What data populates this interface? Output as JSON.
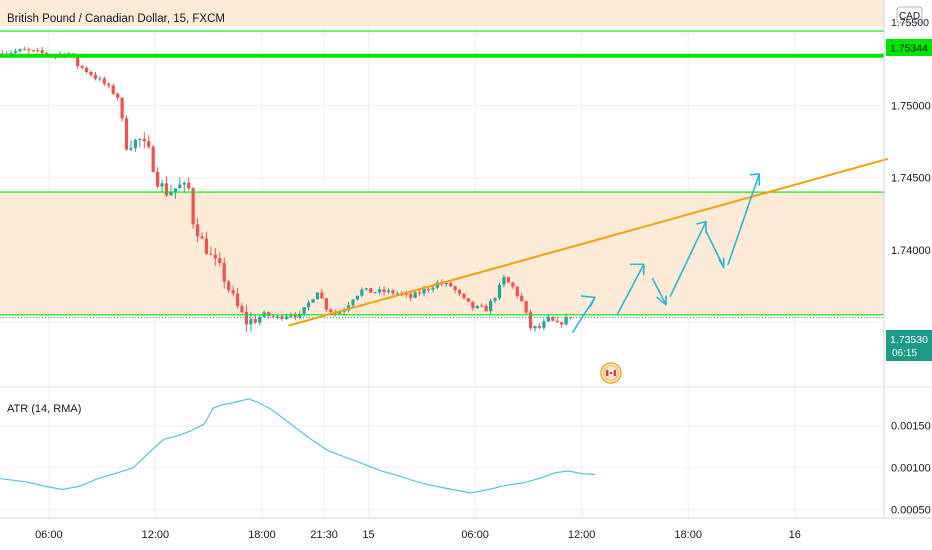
{
  "header": {
    "title": "British Pound / Canadian Dollar, 15, FXCM",
    "currency_badge": "CAD"
  },
  "colors": {
    "up_candle": "#26a69a",
    "down_candle": "#ef5350",
    "zone_fill": "#fdebd7",
    "level_line": "#00e600",
    "trend_line": "#f5a00a",
    "projection": "#27b7d8",
    "atr_line": "#55c3e3",
    "price_tag": "#1c9c86",
    "grid": "#eef0f3"
  },
  "price_panel": {
    "price_ticks": [
      "1.75000",
      "1.74500",
      "1.74000"
    ],
    "top_tick_partial": "1.75500",
    "level_tag": "1.75344",
    "last_price": "1.73530",
    "countdown": "06:15",
    "time_labels": [
      "06:00",
      "12:00",
      "18:00",
      "21:30",
      "15",
      "06:00",
      "12:00",
      "18:00",
      "16"
    ],
    "event_icon": "canada-event-icon"
  },
  "atr_panel": {
    "label": "ATR (14, RMA)",
    "ticks": [
      "0.00150",
      "0.00100",
      "0.00050"
    ]
  },
  "chart_data": {
    "type": "candlestick",
    "title": "British Pound / Canadian Dollar, 15, FXCM",
    "ylim": [
      1.7305,
      1.7573
    ],
    "x_range_bars": [
      0,
      200
    ],
    "grid": true,
    "zones": [
      {
        "from": 1.7555,
        "to": 1.7573
      },
      {
        "from": 1.7355,
        "to": 1.744
      }
    ],
    "levels": [
      1.75515,
      1.75344,
      1.744,
      1.7355
    ],
    "trendline": {
      "from": [
        65,
        1.73475
      ],
      "to": [
        200,
        1.7463
      ]
    },
    "projection_path": [
      [
        129,
        1.7343
      ],
      [
        134,
        1.7367
      ],
      [
        139,
        1.7355
      ],
      [
        146,
        1.739
      ],
      [
        151,
        1.7364
      ],
      [
        146,
        1.739
      ],
      [
        148,
        1.737
      ],
      [
        150,
        1.737
      ],
      [
        153,
        1.7372
      ],
      [
        160,
        1.74195
      ],
      [
        164,
        1.739
      ],
      [
        171,
        1.74525
      ]
    ],
    "projection_segments": [
      [
        [
          129,
          1.7343
        ],
        [
          134,
          1.7367
        ]
      ],
      [
        [
          131,
          1.7368
        ],
        [
          134,
          1.7367
        ],
        [
          133,
          1.7361
        ]
      ],
      [
        [
          139,
          1.7355
        ],
        [
          145,
          1.739
        ]
      ],
      [
        [
          142,
          1.739
        ],
        [
          145,
          1.739
        ],
        [
          145,
          1.7383
        ]
      ],
      [
        [
          147,
          1.738
        ],
        [
          150,
          1.7362
        ]
      ],
      [
        [
          148,
          1.7367
        ],
        [
          150,
          1.7362
        ],
        [
          150,
          1.7368
        ]
      ],
      [
        [
          151,
          1.7368
        ],
        [
          159,
          1.74195
        ]
      ],
      [
        [
          157,
          1.7418
        ],
        [
          159,
          1.74195
        ],
        [
          159,
          1.7412
        ]
      ],
      [
        [
          159,
          1.7413
        ],
        [
          163,
          1.7388
        ]
      ],
      [
        [
          162,
          1.7393
        ],
        [
          163,
          1.7388
        ],
        [
          163,
          1.7394
        ]
      ],
      [
        [
          164,
          1.739
        ],
        [
          171,
          1.74525
        ]
      ],
      [
        [
          169,
          1.7452
        ],
        [
          171,
          1.74525
        ],
        [
          171,
          1.7445
        ]
      ]
    ],
    "close_path": [
      [
        0,
        1.7536
      ],
      [
        6,
        1.7538
      ],
      [
        12,
        1.7535
      ],
      [
        16,
        1.7536
      ],
      [
        18,
        1.7528
      ],
      [
        20,
        1.7524
      ],
      [
        24,
        1.7515
      ],
      [
        27,
        1.7506
      ],
      [
        29,
        1.7473
      ],
      [
        32,
        1.7476
      ],
      [
        34,
        1.7468
      ],
      [
        36,
        1.7448
      ],
      [
        38,
        1.744
      ],
      [
        41,
        1.7444
      ],
      [
        43,
        1.7442
      ],
      [
        44,
        1.742
      ],
      [
        46,
        1.7406
      ],
      [
        48,
        1.7395
      ],
      [
        50,
        1.7387
      ],
      [
        52,
        1.7373
      ],
      [
        54,
        1.736
      ],
      [
        56,
        1.735
      ],
      [
        58,
        1.7352
      ],
      [
        60,
        1.7355
      ],
      [
        63,
        1.7353
      ],
      [
        66,
        1.7356
      ],
      [
        68,
        1.7354
      ],
      [
        70,
        1.7363
      ],
      [
        72,
        1.7372
      ],
      [
        74,
        1.736
      ],
      [
        76,
        1.7356
      ],
      [
        78,
        1.7359
      ],
      [
        80,
        1.7367
      ],
      [
        82,
        1.7372
      ],
      [
        84,
        1.7371
      ],
      [
        87,
        1.7371
      ],
      [
        90,
        1.737
      ],
      [
        93,
        1.7367
      ],
      [
        96,
        1.7372
      ],
      [
        99,
        1.7377
      ],
      [
        102,
        1.7375
      ],
      [
        105,
        1.7365
      ],
      [
        107,
        1.736
      ],
      [
        110,
        1.7359
      ],
      [
        112,
        1.7368
      ],
      [
        114,
        1.738
      ],
      [
        116,
        1.7374
      ],
      [
        118,
        1.7364
      ],
      [
        120,
        1.7346
      ],
      [
        122,
        1.7346
      ],
      [
        124,
        1.7352
      ],
      [
        126,
        1.7348
      ],
      [
        128,
        1.7352
      ]
    ],
    "atr_ylim": [
      0.0004,
      0.00195
    ],
    "atr": {
      "name": "ATR (14, RMA)",
      "points": [
        [
          0,
          0.00087
        ],
        [
          6,
          0.00083
        ],
        [
          10,
          0.00078
        ],
        [
          14,
          0.00074
        ],
        [
          18,
          0.00078
        ],
        [
          22,
          0.00087
        ],
        [
          26,
          0.00093
        ],
        [
          30,
          0.001
        ],
        [
          33,
          0.00115
        ],
        [
          35,
          0.00125
        ],
        [
          37,
          0.00134
        ],
        [
          40,
          0.00138
        ],
        [
          43,
          0.00144
        ],
        [
          46,
          0.00152
        ],
        [
          48,
          0.00171
        ],
        [
          50,
          0.00175
        ],
        [
          53,
          0.00178
        ],
        [
          56,
          0.00182
        ],
        [
          58,
          0.00178
        ],
        [
          61,
          0.0017
        ],
        [
          64,
          0.00158
        ],
        [
          67,
          0.00146
        ],
        [
          70,
          0.00134
        ],
        [
          74,
          0.0012
        ],
        [
          78,
          0.00112
        ],
        [
          82,
          0.00104
        ],
        [
          86,
          0.00096
        ],
        [
          90,
          0.0009
        ],
        [
          94,
          0.00083
        ],
        [
          98,
          0.00078
        ],
        [
          102,
          0.00074
        ],
        [
          106,
          0.0007
        ],
        [
          110,
          0.00074
        ],
        [
          114,
          0.00079
        ],
        [
          118,
          0.00082
        ],
        [
          122,
          0.00088
        ],
        [
          125,
          0.00094
        ],
        [
          128,
          0.00096
        ],
        [
          131,
          0.00093
        ],
        [
          134,
          0.00092
        ]
      ]
    },
    "x_ticks": [
      {
        "bar": 11,
        "label": "06:00"
      },
      {
        "bar": 35,
        "label": "12:00"
      },
      {
        "bar": 59,
        "label": "18:00"
      },
      {
        "bar": 73,
        "label": "21:30"
      },
      {
        "bar": 83,
        "label": "15"
      },
      {
        "bar": 107,
        "label": "06:00"
      },
      {
        "bar": 131,
        "label": "12:00"
      },
      {
        "bar": 155,
        "label": "18:00"
      },
      {
        "bar": 179,
        "label": "16"
      }
    ]
  }
}
